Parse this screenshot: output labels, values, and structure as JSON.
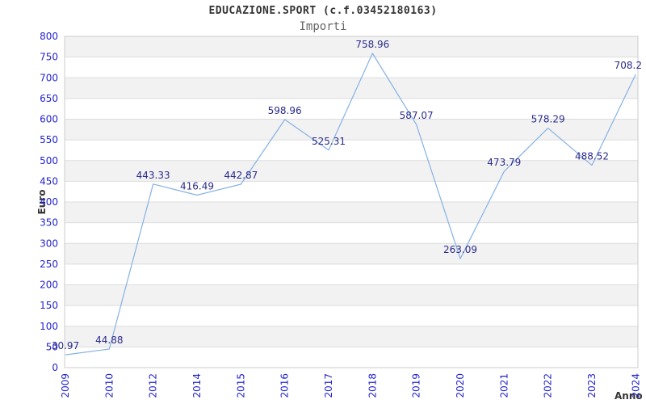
{
  "chart_data": {
    "type": "line",
    "title": "EDUCAZIONE.SPORT (c.f.03452180163)",
    "subtitle": "Importi",
    "xlabel": "Anno",
    "ylabel": "Euro",
    "categories": [
      "2009",
      "2010",
      "2012",
      "2014",
      "2015",
      "2016",
      "2017",
      "2018",
      "2019",
      "2020",
      "2021",
      "2022",
      "2023",
      "2024"
    ],
    "values": [
      30.97,
      44.88,
      443.33,
      416.49,
      442.87,
      598.96,
      525.31,
      758.96,
      587.07,
      263.09,
      473.79,
      578.29,
      488.52,
      708.2
    ],
    "point_labels": [
      "30.97",
      "44.88",
      "443.33",
      "416.49",
      "442.87",
      "598.96",
      "525.31",
      "758.96",
      "587.07",
      "263.09",
      "473.79",
      "578.29",
      "488.52",
      "708.2"
    ],
    "ylim": [
      0,
      800
    ],
    "ytick_step": 50,
    "grid": "horizontal gridlines with alternating shaded bands",
    "legend_position": "none",
    "colors": {
      "line": "#85b2e3",
      "tick_label": "#2323cc",
      "point_label": "#2b2b8c",
      "band": "#f2f2f2",
      "gridline": "#dddddd",
      "plot_border": "#cccccc",
      "title": "#333333",
      "subtitle": "#666666",
      "axis_title": "#333333",
      "background": "#ffffff"
    }
  }
}
